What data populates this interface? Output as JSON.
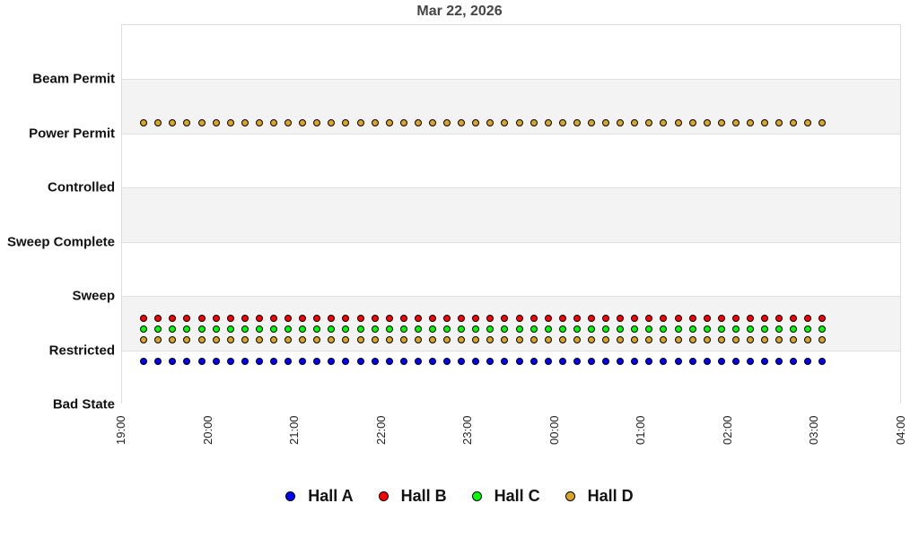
{
  "chart_data": {
    "type": "scatter",
    "title": "Mar 22, 2026",
    "xlabel": "",
    "ylabel": "",
    "y_categories": [
      "Bad State",
      "Restricted",
      "Sweep",
      "Sweep Complete",
      "Controlled",
      "Power Permit",
      "Beam Permit"
    ],
    "x_ticks": [
      "19:00",
      "20:00",
      "21:00",
      "22:00",
      "23:00",
      "00:00",
      "01:00",
      "02:00",
      "03:00",
      "04:00"
    ],
    "x_range": [
      "19:00",
      "04:00"
    ],
    "sample_interval_minutes": 10,
    "x_start": "19:15",
    "x_end": "03:05",
    "num_points": 48,
    "legend_position": "bottom",
    "grid": "alternating horizontal bands",
    "series": [
      {
        "name": "Hall A",
        "color": "#0000ff",
        "state": "Restricted",
        "offset": -1
      },
      {
        "name": "Hall B",
        "color": "#ff0000",
        "state": "Restricted",
        "offset": 3
      },
      {
        "name": "Hall C",
        "color": "#00ff00",
        "state": "Restricted",
        "offset": 2
      },
      {
        "name": "Hall D",
        "color": "#daa520",
        "state": "Restricted",
        "offset": 1
      },
      {
        "name": "Hall D",
        "color": "#daa520",
        "state": "Power Permit",
        "offset": 1
      }
    ]
  },
  "legend": [
    {
      "label": "Hall A",
      "color": "#0000ff"
    },
    {
      "label": "Hall B",
      "color": "#ff0000"
    },
    {
      "label": "Hall C",
      "color": "#00ff00"
    },
    {
      "label": "Hall D",
      "color": "#daa520"
    }
  ]
}
